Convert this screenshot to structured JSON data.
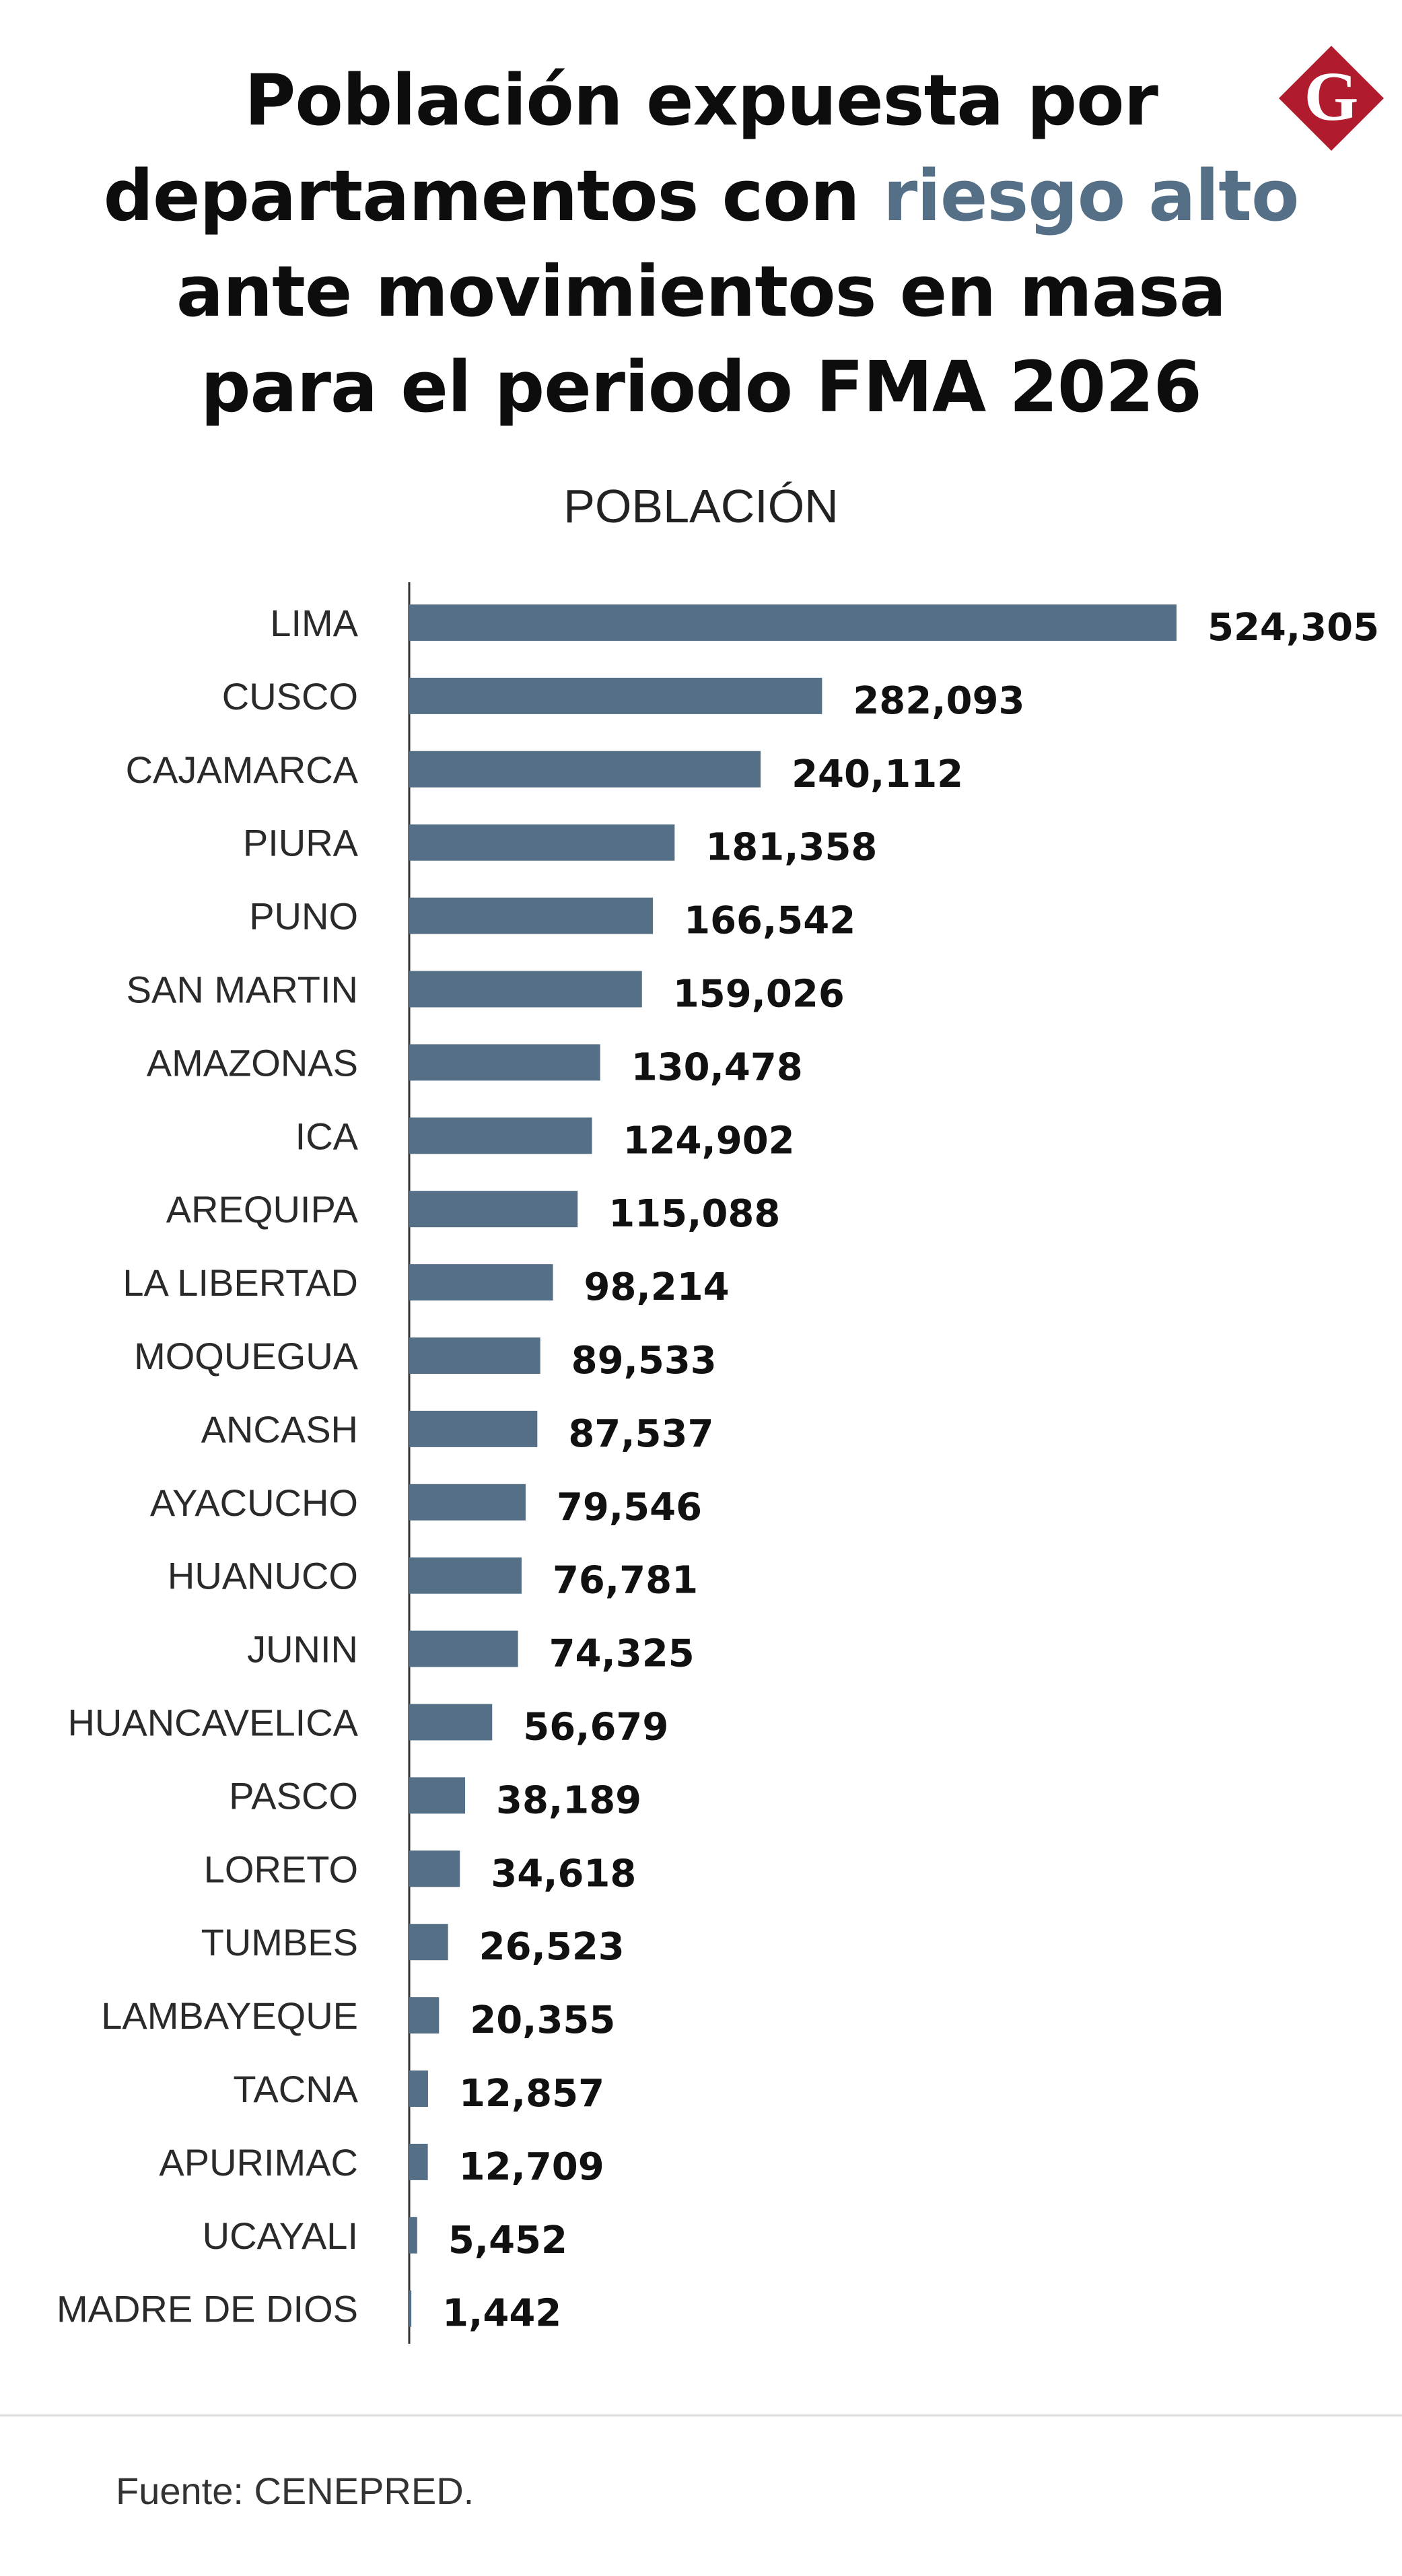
{
  "header": {
    "title_lines": [
      {
        "parts": [
          {
            "text": "Población expuesta por",
            "accent": false
          }
        ]
      },
      {
        "parts": [
          {
            "text": "departamentos con ",
            "accent": false
          },
          {
            "text": "riesgo alto",
            "accent": true
          }
        ]
      },
      {
        "parts": [
          {
            "text": "ante movimientos en masa",
            "accent": false
          }
        ]
      },
      {
        "parts": [
          {
            "text": "para el periodo FMA 2026",
            "accent": false
          }
        ]
      }
    ],
    "logo_letter": "G"
  },
  "colors": {
    "bar": "#557086",
    "accent": "#557086",
    "logo": "#B01C2E"
  },
  "chart_data": {
    "type": "bar",
    "orientation": "horizontal",
    "xlabel": "POBLACIÓN",
    "categories": [
      "LIMA",
      "CUSCO",
      "CAJAMARCA",
      "PIURA",
      "PUNO",
      "SAN MARTIN",
      "AMAZONAS",
      "ICA",
      "AREQUIPA",
      "LA LIBERTAD",
      "MOQUEGUA",
      "ANCASH",
      "AYACUCHO",
      "HUANUCO",
      "JUNIN",
      "HUANCAVELICA",
      "PASCO",
      "LORETO",
      "TUMBES",
      "LAMBAYEQUE",
      "TACNA",
      "APURIMAC",
      "UCAYALI",
      "MADRE DE DIOS"
    ],
    "values": [
      524305,
      282093,
      240112,
      181358,
      166542,
      159026,
      130478,
      124902,
      115088,
      98214,
      89533,
      87537,
      79546,
      76781,
      74325,
      56679,
      38189,
      34618,
      26523,
      20355,
      12857,
      12709,
      5452,
      1442
    ],
    "value_labels": [
      "524,305",
      "282,093",
      "240,112",
      "181,358",
      "166,542",
      "159,026",
      "130,478",
      "124,902",
      "115,088",
      "98,214",
      "89,533",
      "87,537",
      "79,546",
      "76,781",
      "74,325",
      "56,679",
      "38,189",
      "34,618",
      "26,523",
      "20,355",
      "12,857",
      "12,709",
      "5,452",
      "1,442"
    ],
    "xlim": [
      0,
      524305
    ],
    "grid": false,
    "legend": "none"
  },
  "footer": {
    "source": "Fuente: CENEPRED."
  }
}
